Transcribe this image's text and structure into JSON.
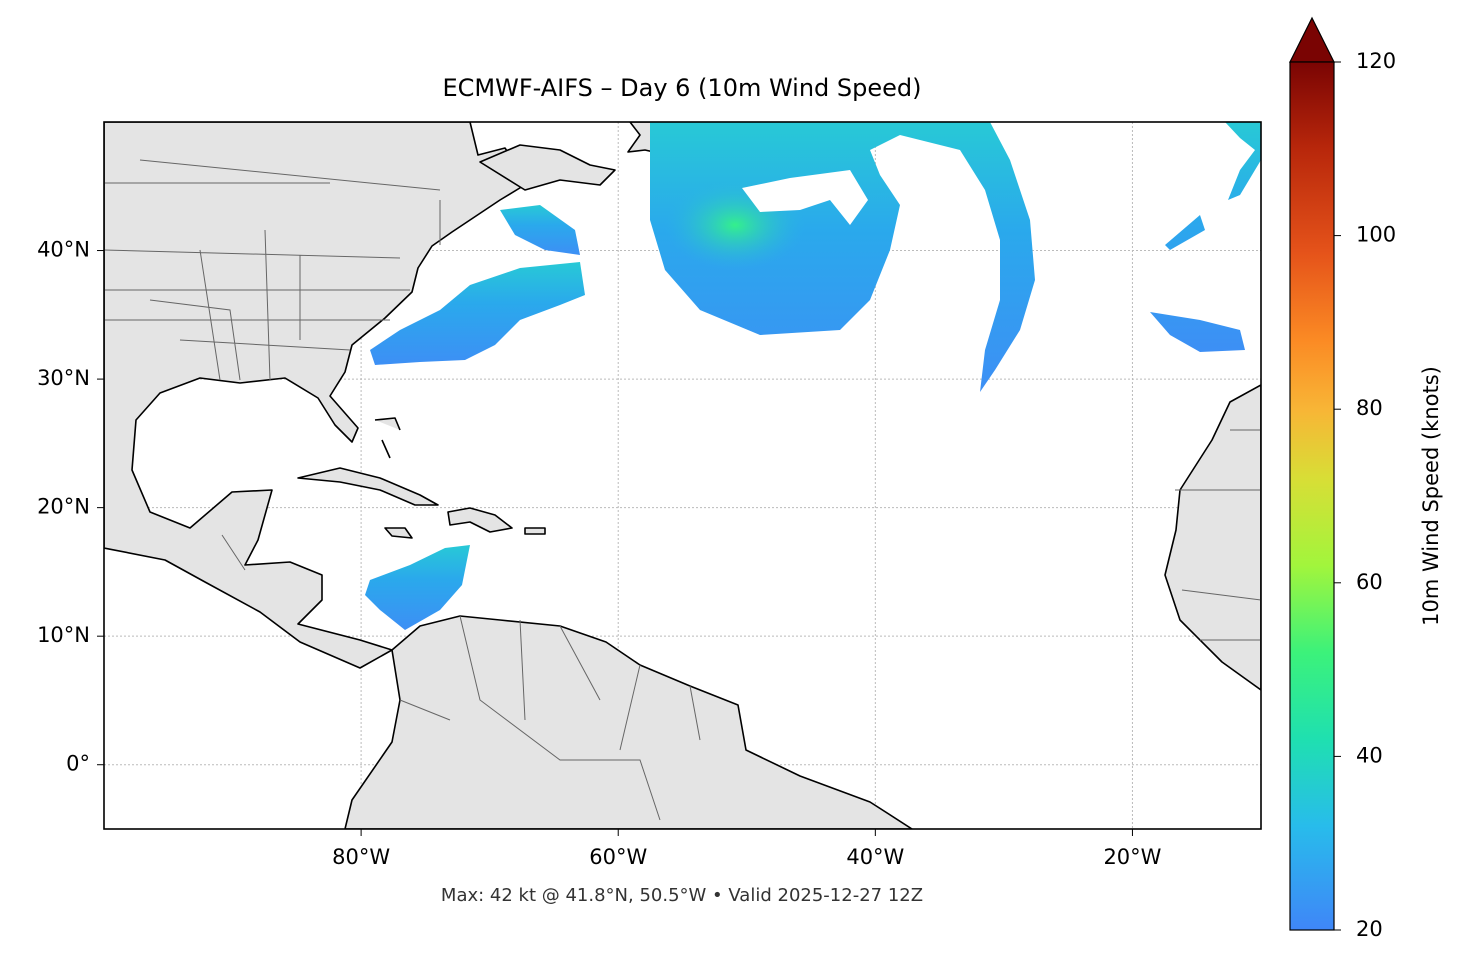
{
  "map": {
    "title": "ECMWF-AIFS – Day 6 (10m Wind Speed)",
    "xlim": [
      -100,
      -10
    ],
    "ylim": [
      -5,
      50
    ],
    "xticks": [
      {
        "value": -80,
        "label": "80°W"
      },
      {
        "value": -60,
        "label": "60°W"
      },
      {
        "value": -40,
        "label": "40°W"
      },
      {
        "value": -20,
        "label": "20°W"
      }
    ],
    "yticks": [
      {
        "value": 0,
        "label": "0°"
      },
      {
        "value": 10,
        "label": "10°N"
      },
      {
        "value": 20,
        "label": "20°N"
      },
      {
        "value": 30,
        "label": "30°N"
      },
      {
        "value": 40,
        "label": "40°N"
      }
    ],
    "grid": true,
    "footer": "Max: 42 kt @ 41.8°N, 50.5°W • Valid 2025-12-27 12Z"
  },
  "colorbar": {
    "label": "10m Wind Speed (knots)",
    "lim": [
      20,
      120
    ],
    "ticks": [
      20,
      40,
      60,
      80,
      100,
      120
    ]
  }
}
